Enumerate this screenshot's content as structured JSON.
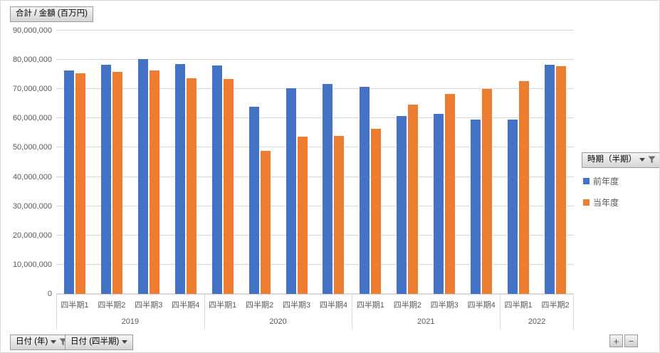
{
  "field_buttons": {
    "value": "合計 / 金額 (百万円)",
    "legend": "時期（半期）",
    "axis_year": "日付 (年)",
    "axis_quarter": "日付 (四半期)"
  },
  "pivot_buttons": {
    "expand": "+",
    "collapse": "−"
  },
  "colors": {
    "grid": "#D9D9D9",
    "axis_text": "#595959",
    "series1": "#4472C4",
    "series2": "#ED7D31"
  },
  "chart_data": {
    "type": "bar",
    "title": "合計 / 金額 (百万円)",
    "ylim": [
      0,
      90000000
    ],
    "ytick_interval": 10000000,
    "ytick_labels": [
      "0",
      "10,000,000",
      "20,000,000",
      "30,000,000",
      "40,000,000",
      "50,000,000",
      "60,000,000",
      "70,000,000",
      "80,000,000",
      "90,000,000"
    ],
    "grid": true,
    "legend_title": "時期（半期）",
    "legend_position": "right",
    "groups": [
      {
        "year": "2019",
        "quarters": [
          "四半期1",
          "四半期2",
          "四半期3",
          "四半期4"
        ]
      },
      {
        "year": "2020",
        "quarters": [
          "四半期1",
          "四半期2",
          "四半期3",
          "四半期4"
        ]
      },
      {
        "year": "2021",
        "quarters": [
          "四半期1",
          "四半期2",
          "四半期3",
          "四半期4"
        ]
      },
      {
        "year": "2022",
        "quarters": [
          "四半期1",
          "四半期2"
        ]
      }
    ],
    "series": [
      {
        "name": "前年度",
        "color": "#4472C4",
        "values": [
          76500000,
          78300000,
          80300000,
          78500000,
          78000000,
          64000000,
          70200000,
          71800000,
          70800000,
          60700000,
          61500000,
          59600000,
          59600000,
          78400000
        ]
      },
      {
        "name": "当年度",
        "color": "#ED7D31",
        "values": [
          75300000,
          76000000,
          76500000,
          73600000,
          73500000,
          48900000,
          53700000,
          54000000,
          56400000,
          64800000,
          68400000,
          70000000,
          72700000,
          77800000
        ]
      }
    ]
  }
}
